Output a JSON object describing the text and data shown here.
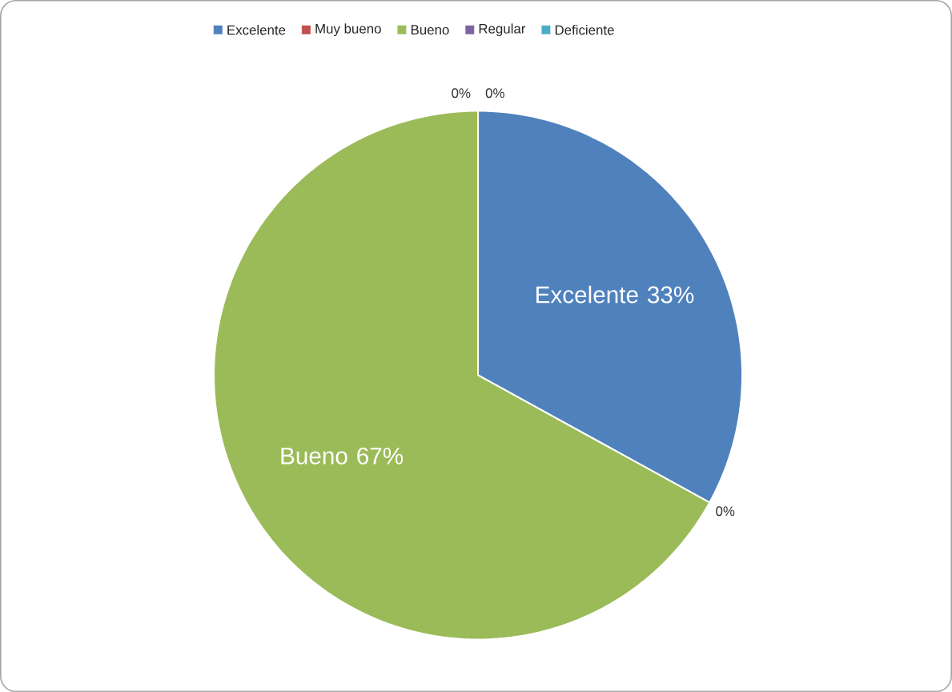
{
  "chart_data": {
    "type": "pie",
    "categories": [
      "Excelente",
      "Muy bueno",
      "Bueno",
      "Regular",
      "Deficiente"
    ],
    "values": [
      33,
      0,
      67,
      0,
      0
    ],
    "colors": [
      "#4f81bd",
      "#c0504d",
      "#9bbb59",
      "#8064a2",
      "#4bacc6"
    ],
    "value_labels": [
      "Excelente 33%",
      "0%",
      "Bueno 67%",
      "0%",
      "0%"
    ],
    "legend": "top"
  }
}
